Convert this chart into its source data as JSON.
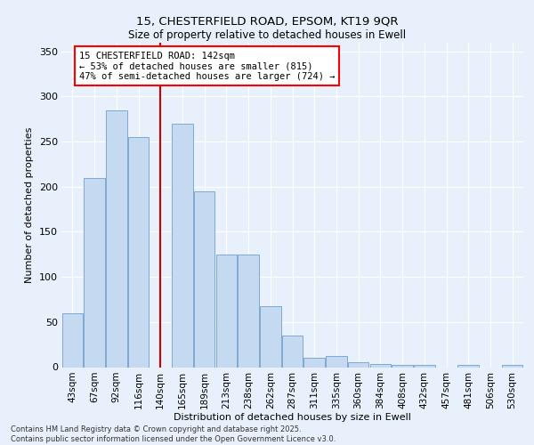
{
  "title_line1": "15, CHESTERFIELD ROAD, EPSOM, KT19 9QR",
  "title_line2": "Size of property relative to detached houses in Ewell",
  "xlabel": "Distribution of detached houses by size in Ewell",
  "ylabel": "Number of detached properties",
  "bar_labels": [
    "43sqm",
    "67sqm",
    "92sqm",
    "116sqm",
    "140sqm",
    "165sqm",
    "189sqm",
    "213sqm",
    "238sqm",
    "262sqm",
    "287sqm",
    "311sqm",
    "335sqm",
    "360sqm",
    "384sqm",
    "408sqm",
    "432sqm",
    "457sqm",
    "481sqm",
    "506sqm",
    "530sqm"
  ],
  "bar_values": [
    60,
    210,
    285,
    255,
    0,
    270,
    195,
    125,
    125,
    68,
    35,
    10,
    12,
    5,
    3,
    2,
    2,
    0,
    2,
    0,
    2
  ],
  "bar_color": "#c5d9f0",
  "bar_edge_color": "#7da9d0",
  "vline_x": 4.0,
  "vline_color": "#cc0000",
  "annotation_title": "15 CHESTERFIELD ROAD: 142sqm",
  "annotation_line2": "← 53% of detached houses are smaller (815)",
  "annotation_line3": "47% of semi-detached houses are larger (724) →",
  "ylim": [
    0,
    360
  ],
  "yticks": [
    0,
    50,
    100,
    150,
    200,
    250,
    300,
    350
  ],
  "footer_line1": "Contains HM Land Registry data © Crown copyright and database right 2025.",
  "footer_line2": "Contains public sector information licensed under the Open Government Licence v3.0.",
  "background_color": "#e8f1fb",
  "grid_color": "#ffffff"
}
